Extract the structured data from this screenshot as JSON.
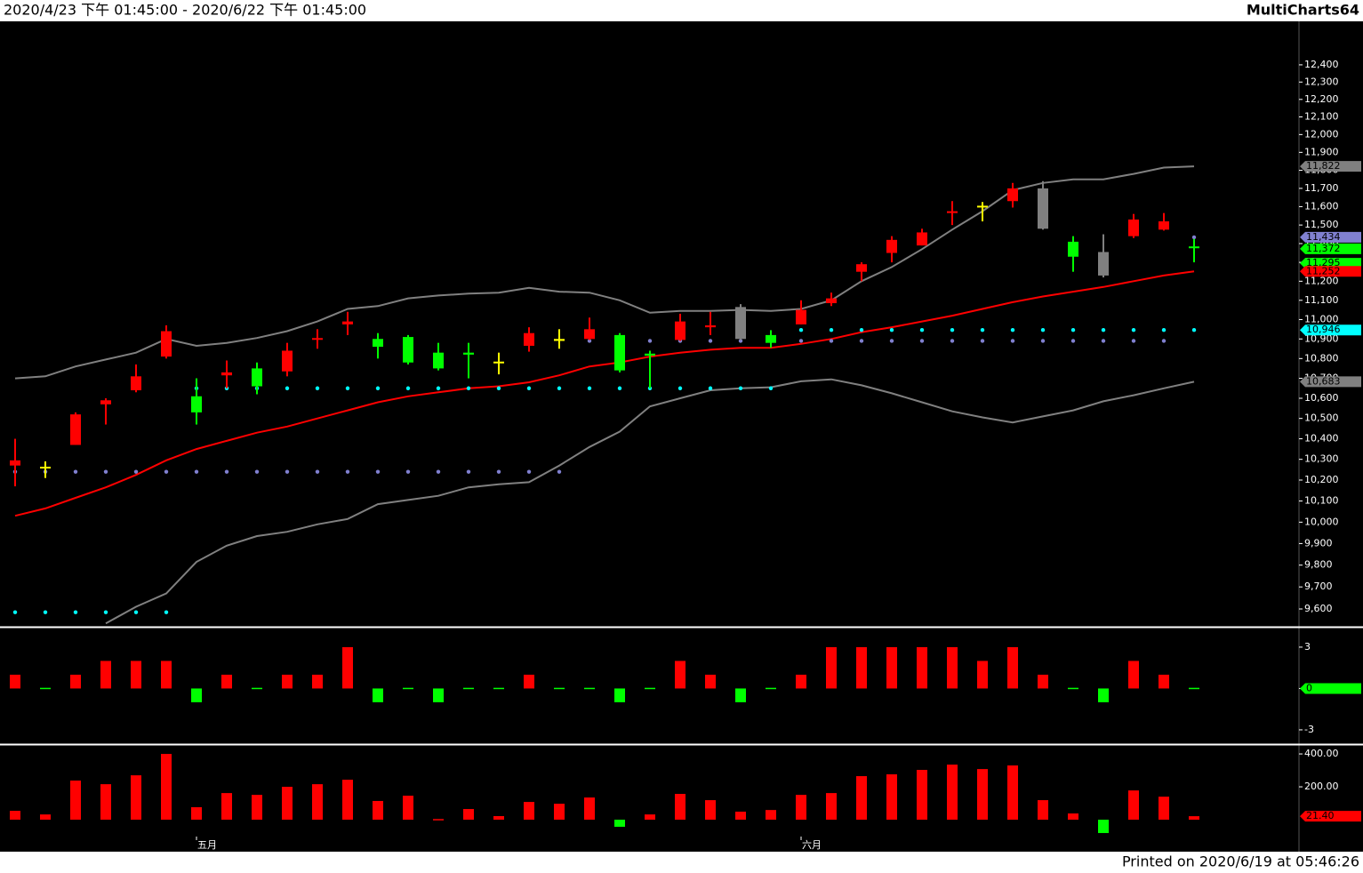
{
  "header": {
    "range": "2020/4/23 下午 01:45:00 - 2020/6/22 下午 01:45:00",
    "brand": "MultiCharts64"
  },
  "footer": "Printed on 2020/6/19 at 05:46:26",
  "chart_data": [
    {
      "type": "candlestick",
      "log": true,
      "categories": [
        null,
        null,
        null,
        null,
        null,
        null,
        "五月",
        null,
        null,
        null,
        null,
        null,
        null,
        null,
        null,
        null,
        null,
        null,
        null,
        null,
        null,
        null,
        null,
        null,
        null,
        null,
        "六月",
        null,
        null,
        null,
        null,
        null,
        null,
        null,
        null,
        null,
        null,
        null,
        null,
        null
      ],
      "open": [
        10270,
        10255,
        10370,
        10570,
        10640,
        10810,
        10610,
        10715,
        10750,
        10735,
        10895,
        10975,
        10900,
        10910,
        10830,
        10830,
        10775,
        10865,
        10890,
        10900,
        10920,
        10825,
        10895,
        10960,
        10900,
        10920,
        10975,
        11085,
        11250,
        11350,
        11390,
        11565,
        11595,
        11630,
        11700,
        11410,
        11355,
        11440,
        11475,
        11380
      ],
      "high": [
        10400,
        10290,
        10530,
        10600,
        10770,
        10970,
        10700,
        10790,
        10780,
        10880,
        10950,
        11040,
        10930,
        10920,
        10880,
        10880,
        10830,
        10960,
        10950,
        11010,
        10930,
        10840,
        11030,
        11040,
        11080,
        10945,
        11100,
        11140,
        11300,
        11440,
        11480,
        11630,
        11625,
        11730,
        11740,
        11440,
        11450,
        11560,
        11565,
        11425
      ],
      "low": [
        10170,
        10210,
        10370,
        10470,
        10630,
        10800,
        10470,
        10650,
        10620,
        10710,
        10850,
        10920,
        10800,
        10770,
        10740,
        10700,
        10720,
        10835,
        10850,
        10895,
        10730,
        10650,
        10890,
        10920,
        10895,
        10855,
        10975,
        11070,
        11200,
        11300,
        11390,
        11500,
        11520,
        11595,
        11475,
        11250,
        11220,
        11430,
        11470,
        11300
      ],
      "close": [
        10295,
        10260,
        10520,
        10590,
        10710,
        10940,
        10530,
        10730,
        10660,
        10840,
        10900,
        10990,
        10860,
        10780,
        10750,
        10820,
        10780,
        10930,
        10900,
        10950,
        10740,
        10815,
        10990,
        10970,
        11065,
        10880,
        11050,
        11110,
        11290,
        11420,
        11460,
        11575,
        11600,
        11700,
        11480,
        11330,
        11230,
        11530,
        11520,
        11372
      ],
      "colors": [
        "#ff0000",
        "#ffff00",
        "#ff0000",
        "#ff0000",
        "#ff0000",
        "#ff0000",
        "#00ff00",
        "#ff0000",
        "#00ff00",
        "#ff0000",
        "#ff0000",
        "#ff0000",
        "#00ff00",
        "#00ff00",
        "#00ff00",
        "#00ff00",
        "#ffff00",
        "#ff0000",
        "#ffff00",
        "#ff0000",
        "#00ff00",
        "#00ff00",
        "#ff0000",
        "#ff0000",
        "#808080",
        "#00ff00",
        "#ff0000",
        "#ff0000",
        "#ff0000",
        "#ff0000",
        "#ff0000",
        "#ff0000",
        "#ffff00",
        "#ff0000",
        "#808080",
        "#00ff00",
        "#808080",
        "#ff0000",
        "#ff0000",
        "#00ff00"
      ],
      "lines": [
        {
          "color": "#808080",
          "values": [
            10700,
            10710,
            10760,
            10795,
            10830,
            10900,
            10865,
            10880,
            10905,
            10940,
            10990,
            11055,
            11070,
            11110,
            11125,
            11135,
            11140,
            11165,
            11145,
            11140,
            11100,
            11035,
            11045,
            11045,
            11050,
            11045,
            11055,
            11100,
            11200,
            11275,
            11370,
            11475,
            11575,
            11690,
            11730,
            11750,
            11750,
            11780,
            11815,
            11822
          ]
        },
        {
          "color": "#808080",
          "values": [
            null,
            null,
            null,
            9535,
            9610,
            9670,
            9815,
            9890,
            9935,
            9955,
            9990,
            10015,
            10085,
            10105,
            10125,
            10165,
            10180,
            10190,
            10270,
            10360,
            10435,
            10560,
            10600,
            10640,
            10650,
            10655,
            10685,
            10695,
            10665,
            10625,
            10580,
            10535,
            10505,
            10480,
            10510,
            10540,
            10585,
            10615,
            10650,
            10683
          ]
        },
        {
          "color": "#ff0000",
          "values": [
            10030,
            10065,
            10115,
            10165,
            10225,
            10295,
            10350,
            10390,
            10430,
            10460,
            10500,
            10540,
            10580,
            10610,
            10630,
            10650,
            10660,
            10680,
            10715,
            10760,
            10780,
            10810,
            10830,
            10845,
            10855,
            10855,
            10875,
            10900,
            10935,
            10960,
            10990,
            11020,
            11055,
            11090,
            11120,
            11145,
            11170,
            11200,
            11230,
            11252
          ]
        }
      ],
      "dots": [
        {
          "color": "#00ffff",
          "values": [
            9585,
            9585,
            9585,
            9585,
            9585,
            9585,
            10650,
            10650,
            10650,
            10650,
            10650,
            10650,
            10650,
            10650,
            10650,
            10650,
            10650,
            10650,
            10650,
            10650,
            10650,
            10650,
            10650,
            10650,
            10650,
            10650,
            10946,
            10946,
            10946,
            10946,
            10946,
            10946,
            10946,
            10946,
            10946,
            10946,
            10946,
            10946,
            10946,
            10946
          ]
        },
        {
          "color": "#8080d0",
          "values": [
            10240,
            10240,
            10240,
            10240,
            10240,
            10240,
            10240,
            10240,
            10240,
            10240,
            10240,
            10240,
            10240,
            10240,
            10240,
            10240,
            10240,
            10240,
            10240,
            10890,
            10890,
            10890,
            10890,
            10890,
            10890,
            10890,
            10890,
            10890,
            10890,
            10890,
            10890,
            10890,
            10890,
            10890,
            10890,
            10890,
            10890,
            10890,
            10890,
            11434
          ]
        }
      ],
      "markers": [
        {
          "value": 11822,
          "label": "11,822",
          "color": "#808080"
        },
        {
          "value": 11434,
          "label": "11,434",
          "color": "#8080d0"
        },
        {
          "value": 11372,
          "label": "11,372",
          "color": "#00ff00"
        },
        {
          "value": 11295,
          "label": "11,295",
          "color": "#00ff00"
        },
        {
          "value": 11252,
          "label": "11,252",
          "color": "#ff0000"
        },
        {
          "value": 10946,
          "label": "10,946",
          "color": "#00ffff"
        },
        {
          "value": 10683,
          "label": "10,683",
          "color": "#808080"
        }
      ],
      "ylim": [
        9524,
        12651
      ],
      "yticks": [
        {
          "value": 12400,
          "label": "12,400"
        },
        {
          "value": 12300,
          "label": "12,300"
        },
        {
          "value": 12200,
          "label": "12,200"
        },
        {
          "value": 12100,
          "label": "12,100"
        },
        {
          "value": 12000,
          "label": "12,000"
        },
        {
          "value": 11900,
          "label": "11,900"
        },
        {
          "value": 11800,
          "label": "11,800"
        },
        {
          "value": 11700,
          "label": "11,700"
        },
        {
          "value": 11600,
          "label": "11,600"
        },
        {
          "value": 11500,
          "label": "11,500"
        },
        {
          "value": 11400,
          "label": "11,400"
        },
        {
          "value": 11300,
          "label": "11,300"
        },
        {
          "value": 11200,
          "label": "11,200"
        },
        {
          "value": 11100,
          "label": "11,100"
        },
        {
          "value": 11000,
          "label": "11,000"
        },
        {
          "value": 10900,
          "label": "10,900"
        },
        {
          "value": 10800,
          "label": "10,800"
        },
        {
          "value": 10700,
          "label": "10,700"
        },
        {
          "value": 10600,
          "label": "10,600"
        },
        {
          "value": 10500,
          "label": "10,500"
        },
        {
          "value": 10400,
          "label": "10,400"
        },
        {
          "value": 10300,
          "label": "10,300"
        },
        {
          "value": 10200,
          "label": "10,200"
        },
        {
          "value": 10100,
          "label": "10,100"
        },
        {
          "value": 10000,
          "label": "10,000"
        },
        {
          "value": 9900,
          "label": "9,900"
        },
        {
          "value": 9800,
          "label": "9,800"
        },
        {
          "value": 9700,
          "label": "9,700"
        },
        {
          "value": 9600,
          "label": "9,600"
        }
      ]
    },
    {
      "type": "bar",
      "up_color": "#ff0000",
      "down_color": "#00ff00",
      "values": [
        1,
        0,
        1,
        2,
        2,
        2,
        -1,
        1,
        0,
        1,
        1,
        3,
        -1,
        0,
        -1,
        0,
        0,
        1,
        0,
        0,
        -1,
        0,
        2,
        1,
        -1,
        0,
        1,
        3,
        3,
        3,
        3,
        3,
        2,
        3,
        1,
        0,
        -1,
        2,
        1,
        0
      ],
      "markers": [
        {
          "value": 0,
          "label": "0",
          "color": "#00ff00"
        }
      ],
      "ylim": [
        -3.97,
        4.35
      ],
      "yticks": [
        3,
        0,
        -3
      ]
    },
    {
      "type": "bar",
      "up_color": "#ff0000",
      "down_color": "#00ff00",
      "values": [
        54,
        32,
        238,
        216,
        270,
        400,
        76,
        162,
        151,
        200,
        216,
        243,
        114,
        146,
        5,
        65,
        22,
        108,
        97,
        135,
        -43,
        32,
        157,
        119,
        49,
        59,
        151,
        162,
        265,
        276,
        303,
        335,
        308,
        330,
        119,
        38,
        -81,
        178,
        140,
        21.4
      ],
      "markers": [
        {
          "value": 21.4,
          "label": "21.40",
          "color": "#ff0000"
        }
      ],
      "ylim": [
        -97,
        449
      ],
      "yticks": [
        {
          "value": 400,
          "label": "400.00"
        },
        {
          "value": 200,
          "label": "200.00"
        }
      ]
    }
  ]
}
